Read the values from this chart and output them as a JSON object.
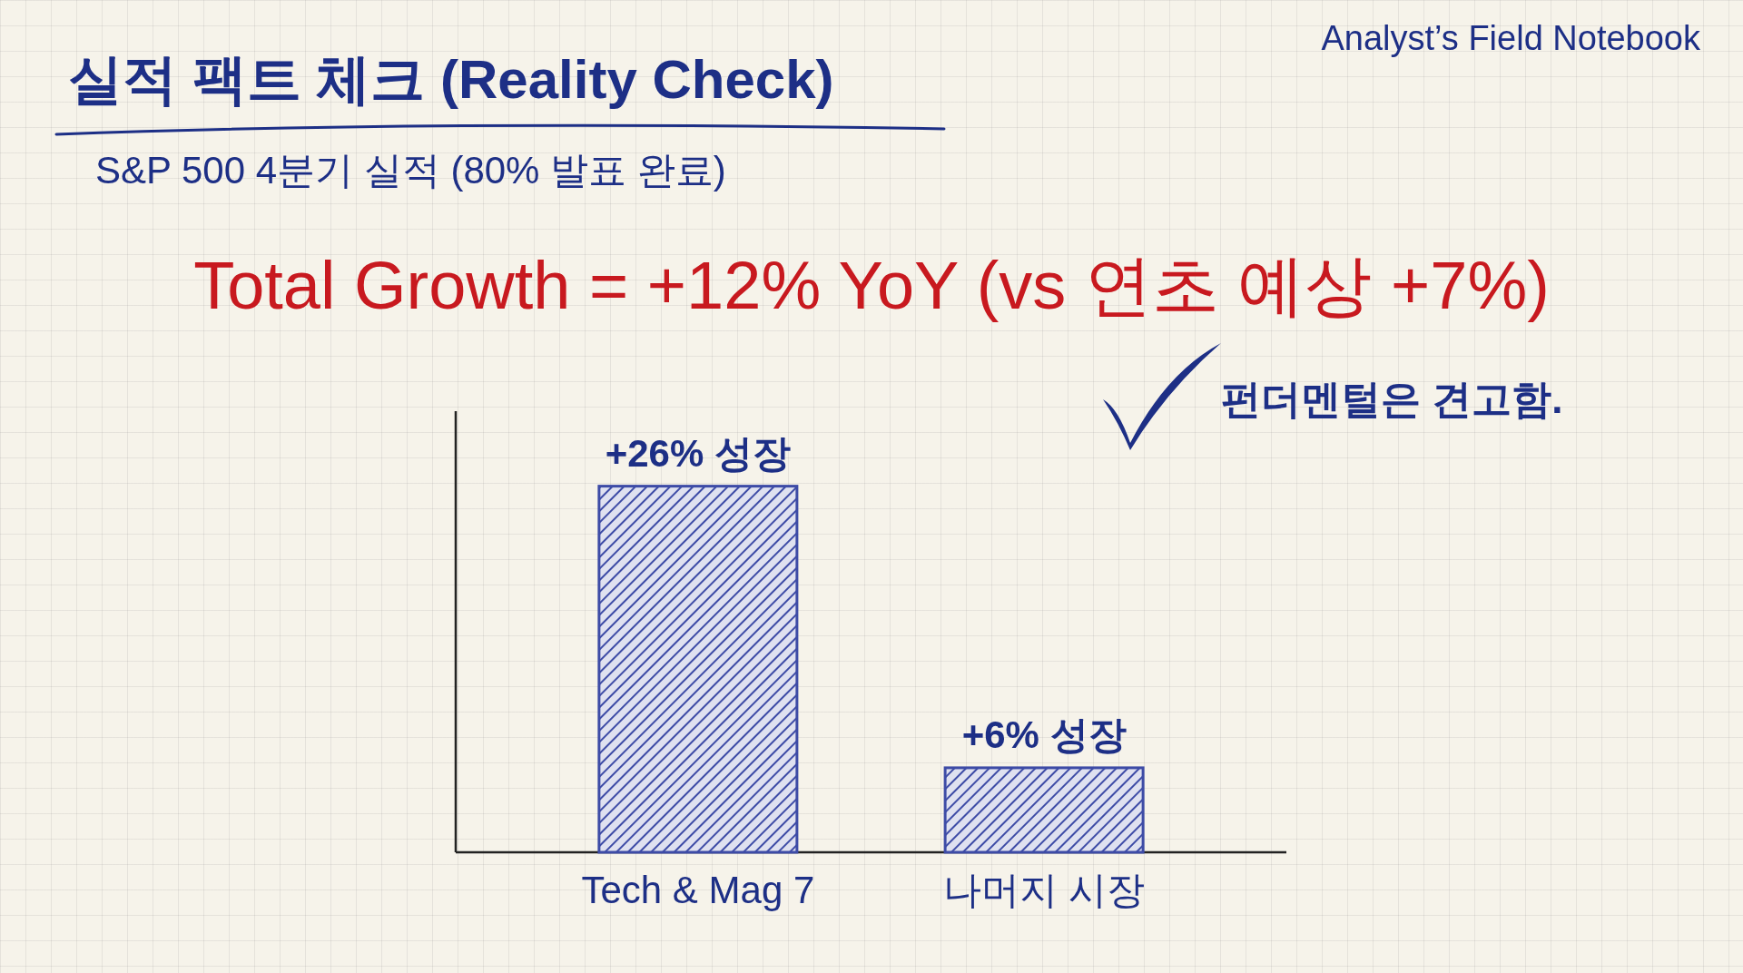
{
  "chart_data": {
    "type": "bar",
    "title": "실적 팩트 체크 (Reality Check)",
    "subtitle": "S&P 500 4분기 실적 (80% 발표 완료)",
    "annotations": [
      "Total Growth = +12% YoY (vs 연초 예상 +7%)",
      "펀더멘털은 견고함.",
      "Analyst’s Field Notebook"
    ],
    "categories": [
      "Tech & Mag 7",
      "나머지 시장"
    ],
    "values": [
      26,
      6
    ],
    "value_labels": [
      "+26% 성장",
      "+6% 성장"
    ],
    "color": "#3d4ba6"
  }
}
